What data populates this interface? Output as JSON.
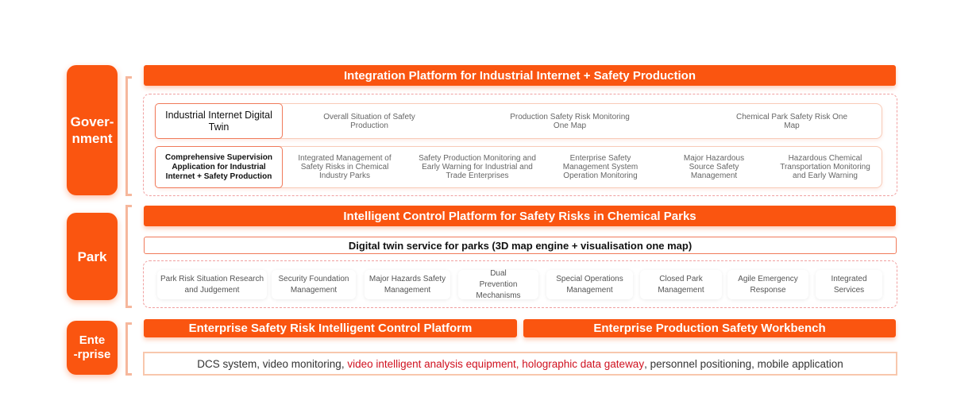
{
  "colors": {
    "accent": "#fa5510",
    "highlight_text": "#d0111f"
  },
  "government": {
    "label": "Gover-\nnment",
    "platform_title": "Integration Platform for Industrial Internet + Safety Production",
    "row1": {
      "title": "Industrial Internet Digital Twin",
      "items": [
        "Overall Situation of Safety Production",
        "Production Safety Risk Monitoring One Map",
        "Chemical Park Safety Risk One Map"
      ]
    },
    "row2": {
      "title": "Comprehensive Supervision Application for Industrial Internet + Safety Production",
      "items": [
        "Integrated Management of Safety Risks in Chemical Industry Parks",
        "Safety Production Monitoring and Early Warning for Industrial and Trade Enterprises",
        "Enterprise Safety Management System Operation Monitoring",
        "Major Hazardous Source Safety Management",
        "Hazardous Chemical Transportation Monitoring and Early Warning"
      ]
    }
  },
  "park": {
    "label": "Park",
    "platform_title": "Intelligent Control Platform for Safety Risks in Chemical Parks",
    "digital_twin": "Digital twin service for parks (3D map engine + visualisation one map)",
    "items": [
      "Park Risk Situation Research and Judgement",
      "Security Foundation Management",
      "Major Hazards Safety Management",
      "Dual Prevention Mechanisms",
      "Special Operations Management",
      "Closed Park Management",
      "Agile Emergency Response",
      "Integrated Services"
    ]
  },
  "enterprise": {
    "label": "Ente\n-rprise",
    "platform_left": "Enterprise Safety Risk Intelligent Control Platform",
    "platform_right": "Enterprise Production Safety Workbench",
    "systems": [
      {
        "text": "DCS system, video monitoring, ",
        "highlight": false
      },
      {
        "text": "video intelligent analysis equipment, holographic data gateway",
        "highlight": true
      },
      {
        "text": ", personnel positioning, mobile application",
        "highlight": false
      }
    ]
  }
}
